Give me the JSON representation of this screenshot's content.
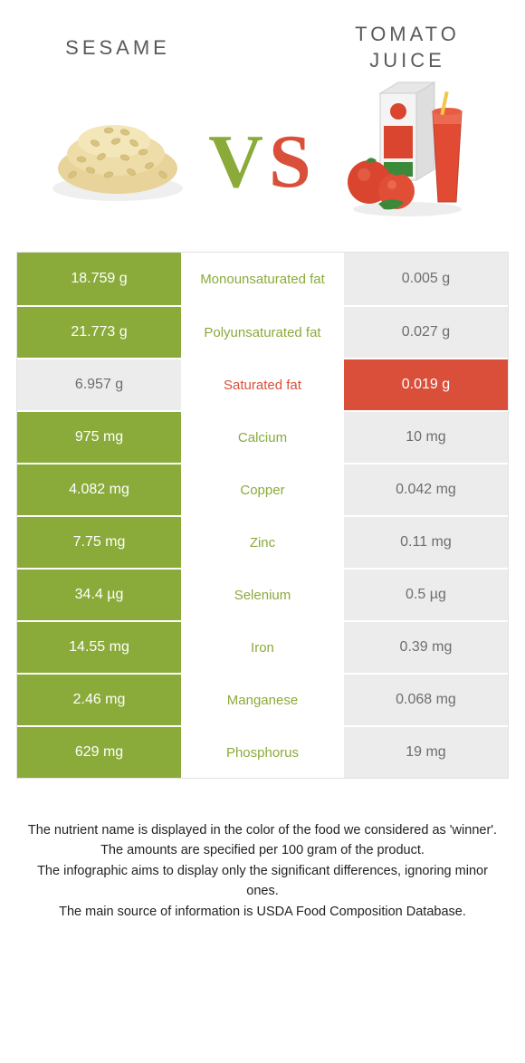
{
  "header": {
    "food_a": {
      "title": "SESAME"
    },
    "food_b": {
      "title": "TOMATO JUICE"
    },
    "vs_v": "V",
    "vs_s": "S"
  },
  "colors": {
    "green": "#8aab3a",
    "red": "#d94f3a",
    "grey_bg": "#ececec",
    "grey_text": "#6e6e6e",
    "row_border": "#ffffff"
  },
  "rows": [
    {
      "left": "18.759 g",
      "label": "Monounsaturated fat",
      "right": "0.005 g",
      "left_winner": true,
      "right_winner": false,
      "label_color": "green"
    },
    {
      "left": "21.773 g",
      "label": "Polyunsaturated fat",
      "right": "0.027 g",
      "left_winner": true,
      "right_winner": false,
      "label_color": "green"
    },
    {
      "left": "6.957 g",
      "label": "Saturated fat",
      "right": "0.019 g",
      "left_winner": false,
      "right_winner": true,
      "label_color": "red"
    },
    {
      "left": "975 mg",
      "label": "Calcium",
      "right": "10 mg",
      "left_winner": true,
      "right_winner": false,
      "label_color": "green"
    },
    {
      "left": "4.082 mg",
      "label": "Copper",
      "right": "0.042 mg",
      "left_winner": true,
      "right_winner": false,
      "label_color": "green"
    },
    {
      "left": "7.75 mg",
      "label": "Zinc",
      "right": "0.11 mg",
      "left_winner": true,
      "right_winner": false,
      "label_color": "green"
    },
    {
      "left": "34.4 µg",
      "label": "Selenium",
      "right": "0.5 µg",
      "left_winner": true,
      "right_winner": false,
      "label_color": "green"
    },
    {
      "left": "14.55 mg",
      "label": "Iron",
      "right": "0.39 mg",
      "left_winner": true,
      "right_winner": false,
      "label_color": "green"
    },
    {
      "left": "2.46 mg",
      "label": "Manganese",
      "right": "0.068 mg",
      "left_winner": true,
      "right_winner": false,
      "label_color": "green"
    },
    {
      "left": "629 mg",
      "label": "Phosphorus",
      "right": "19 mg",
      "left_winner": true,
      "right_winner": false,
      "label_color": "green"
    }
  ],
  "footer": {
    "line1": "The nutrient name is displayed in the color of the food we considered as 'winner'.",
    "line2": "The amounts are specified per 100 gram of the product.",
    "line3": "The infographic aims to display only the significant differences, ignoring minor ones.",
    "line4": "The main source of information is USDA Food Composition Database."
  }
}
